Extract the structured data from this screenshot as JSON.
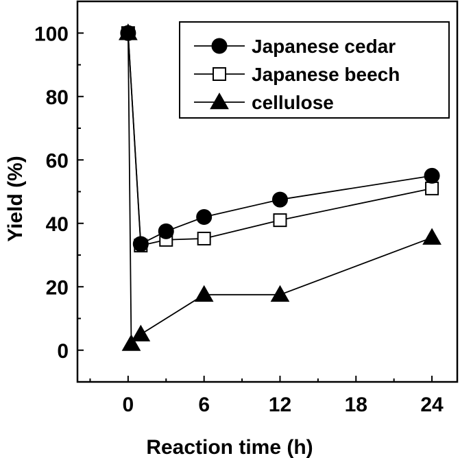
{
  "chart_data": {
    "type": "line",
    "xlabel": "Reaction time (h)",
    "ylabel": "Yield (%)",
    "xlim": [
      -4,
      26
    ],
    "ylim": [
      -10,
      110
    ],
    "xticks": [
      0,
      6,
      12,
      18,
      24
    ],
    "yticks": [
      0,
      20,
      40,
      60,
      80,
      100
    ],
    "grid": false,
    "legend_position": "top-right",
    "series": [
      {
        "name": "Japanese cedar",
        "marker": "circle-filled",
        "x": [
          0,
          1,
          3,
          6,
          12,
          24
        ],
        "y": [
          100,
          33.5,
          37.5,
          42,
          47.5,
          55
        ]
      },
      {
        "name": "Japanese beech",
        "marker": "square-open",
        "x": [
          0,
          1,
          3,
          6,
          12,
          24
        ],
        "y": [
          100,
          33,
          34.8,
          35.2,
          41,
          51
        ]
      },
      {
        "name": "cellulose",
        "marker": "triangle-filled",
        "x": [
          0,
          0.25,
          1,
          6,
          12,
          24
        ],
        "y": [
          100,
          2,
          5,
          17.5,
          17.5,
          35.5
        ]
      }
    ]
  }
}
